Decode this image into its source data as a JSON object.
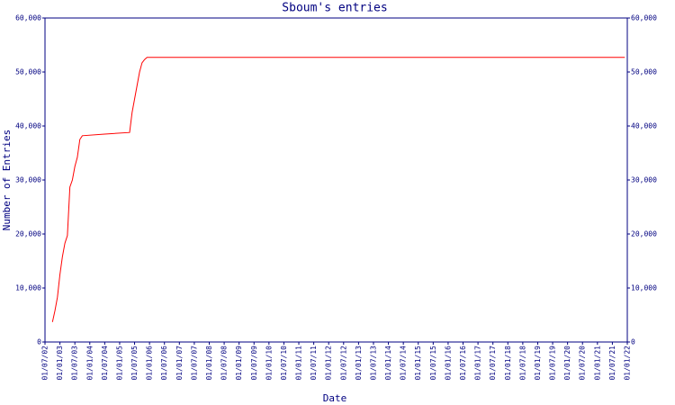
{
  "chart_data": {
    "type": "line",
    "title": "Sboum's entries",
    "x_label": "Date",
    "y_label": "Number of Entries",
    "xlim": [
      "01/07/02",
      "01/01/22"
    ],
    "xticks": [
      "01/07/02",
      "01/01/03",
      "01/07/03",
      "01/01/04",
      "01/07/04",
      "01/01/05",
      "01/07/05",
      "01/01/06",
      "01/07/06",
      "01/01/07",
      "01/07/07",
      "01/01/08",
      "01/07/08",
      "01/01/09",
      "01/07/09",
      "01/01/10",
      "01/07/10",
      "01/01/11",
      "01/07/11",
      "01/01/12",
      "01/07/12",
      "01/01/13",
      "01/07/13",
      "01/01/14",
      "01/07/14",
      "01/01/15",
      "01/07/15",
      "01/01/16",
      "01/07/16",
      "01/01/17",
      "01/07/17",
      "01/01/18",
      "01/07/18",
      "01/01/19",
      "01/07/19",
      "01/01/20",
      "01/07/20",
      "01/01/21",
      "01/07/21",
      "01/01/22"
    ],
    "ylim": [
      0,
      60000
    ],
    "yticks": [
      0,
      {
        "value": 10000,
        "label": "10,000"
      },
      {
        "value": 20000,
        "label": "20,000"
      },
      {
        "value": 30000,
        "label": "30,000"
      },
      {
        "value": 40000,
        "label": "40,000"
      },
      {
        "value": 50000,
        "label": "50,000"
      },
      {
        "value": 60000,
        "label": "60,000"
      }
    ],
    "x": [
      "01/10/02",
      "01/11/02",
      "01/12/02",
      "01/01/03",
      "01/02/03",
      "01/03/03",
      "01/04/03",
      "01/05/03",
      "01/06/03",
      "01/07/03",
      "01/08/03",
      "01/09/03",
      "01/10/03",
      "01/07/04",
      "01/05/05",
      "01/06/05",
      "01/08/05",
      "01/09/05",
      "01/10/05",
      "01/11/05",
      "01/12/05",
      "01/12/21"
    ],
    "series": [
      {
        "color": "#ff0000",
        "values": [
          3700,
          5800,
          8300,
          12500,
          15800,
          18300,
          19700,
          28700,
          30000,
          32500,
          34200,
          37500,
          38200,
          38500,
          38800,
          42500,
          47500,
          50000,
          51700,
          52300,
          52700,
          52700
        ]
      }
    ]
  }
}
